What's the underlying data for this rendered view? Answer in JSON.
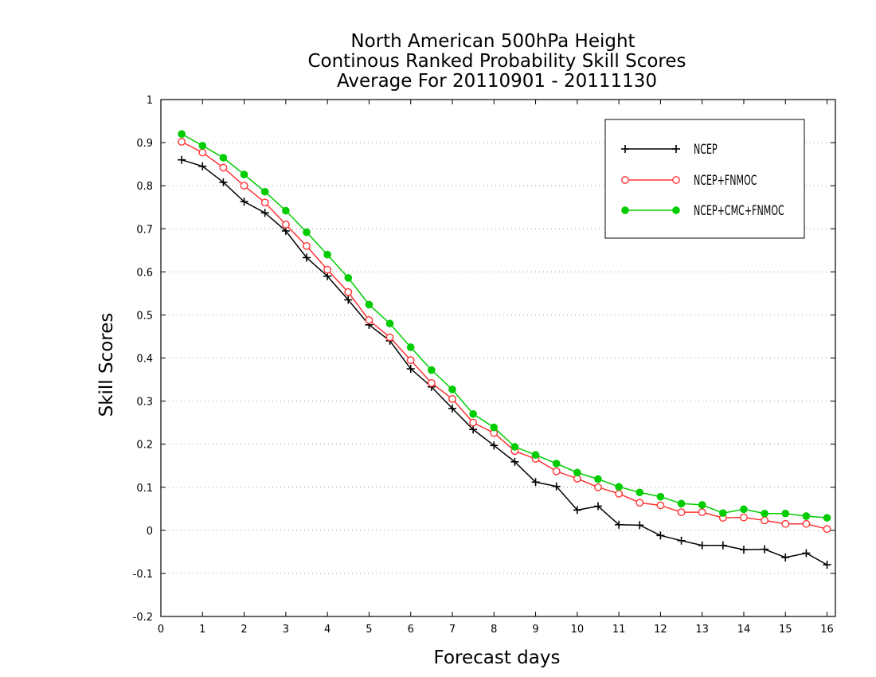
{
  "chart_data": {
    "type": "line",
    "title": [
      "North American 500hPa Height",
      "Continous Ranked Probability Skill Scores",
      "Average For 20110901 - 20111130"
    ],
    "xlabel": "Forecast days",
    "ylabel": "Skill Scores",
    "xlim": [
      0,
      16.2
    ],
    "ylim": [
      -0.2,
      1
    ],
    "xticks": [
      0,
      1,
      2,
      3,
      4,
      5,
      6,
      7,
      8,
      9,
      10,
      11,
      12,
      13,
      14,
      15,
      16
    ],
    "yticks": [
      -0.2,
      -0.1,
      0,
      0.1,
      0.2,
      0.3,
      0.4,
      0.5,
      0.6,
      0.7,
      0.8,
      0.9,
      1
    ],
    "ytick_labels": [
      "-0.2",
      "-0.1",
      "0",
      "0.1",
      "0.2",
      "0.3",
      "0.4",
      "0.5",
      "0.6",
      "0.7",
      "0.8",
      "0.9",
      "1"
    ],
    "grid": "horizontal dotted",
    "legend_position": "top-right",
    "x": [
      0.5,
      1,
      1.5,
      2,
      2.5,
      3,
      3.5,
      4,
      4.5,
      5,
      5.5,
      6,
      6.5,
      7,
      7.5,
      8,
      8.5,
      9,
      9.5,
      10,
      10.5,
      11,
      11.5,
      12,
      12.5,
      13,
      13.5,
      14,
      14.5,
      15,
      15.5,
      16
    ],
    "series": [
      {
        "name": "NCEP",
        "color": "#000000",
        "marker": "plus",
        "values": [
          0.86,
          0.845,
          0.808,
          0.763,
          0.737,
          0.695,
          0.633,
          0.59,
          0.535,
          0.477,
          0.44,
          0.375,
          0.333,
          0.283,
          0.234,
          0.197,
          0.159,
          0.112,
          0.102,
          0.047,
          0.056,
          0.013,
          0.012,
          -0.012,
          -0.024,
          -0.035,
          -0.035,
          -0.045,
          -0.044,
          -0.063,
          -0.053,
          -0.08
        ]
      },
      {
        "name": "NCEP+FNMOC",
        "color": "#ff3333",
        "marker": "open-circle",
        "values": [
          0.902,
          0.877,
          0.842,
          0.8,
          0.761,
          0.71,
          0.66,
          0.605,
          0.553,
          0.488,
          0.448,
          0.395,
          0.342,
          0.305,
          0.25,
          0.226,
          0.184,
          0.166,
          0.137,
          0.12,
          0.1,
          0.085,
          0.064,
          0.058,
          0.042,
          0.042,
          0.029,
          0.03,
          0.023,
          0.015,
          0.015,
          0.003
        ]
      },
      {
        "name": "NCEP+CMC+FNMOC",
        "color": "#00cc00",
        "marker": "filled-circle",
        "values": [
          0.92,
          0.893,
          0.865,
          0.826,
          0.786,
          0.742,
          0.692,
          0.64,
          0.586,
          0.524,
          0.48,
          0.425,
          0.372,
          0.327,
          0.27,
          0.239,
          0.194,
          0.175,
          0.155,
          0.134,
          0.119,
          0.101,
          0.088,
          0.078,
          0.062,
          0.059,
          0.04,
          0.049,
          0.039,
          0.039,
          0.033,
          0.029
        ]
      }
    ]
  }
}
